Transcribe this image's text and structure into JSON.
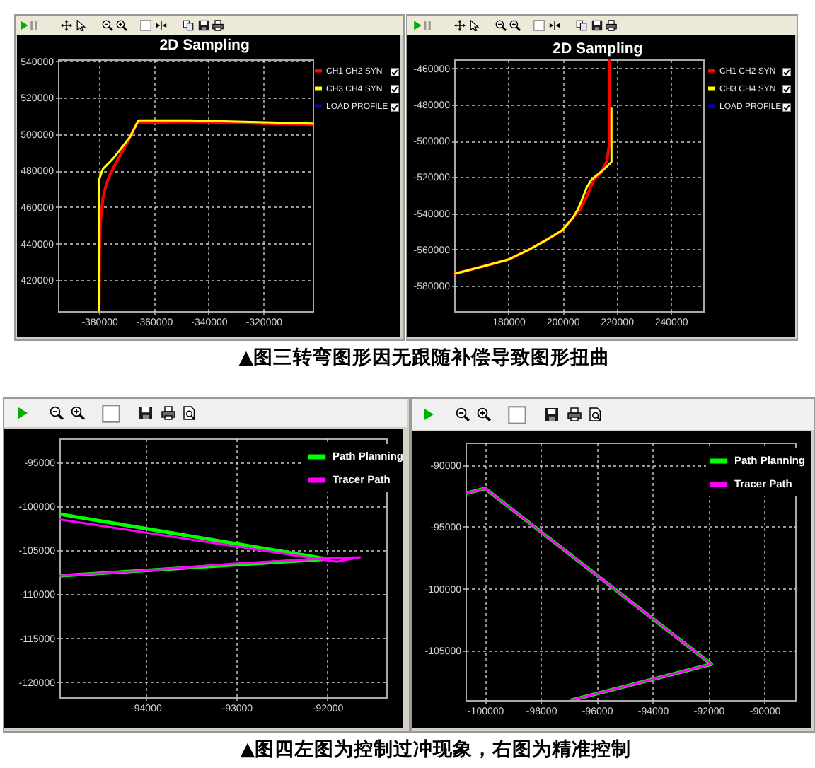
{
  "chart_data": [
    {
      "type": "line",
      "title": "2D Sampling",
      "xlim": [
        -395000,
        -302000
      ],
      "xticks": [
        -380000,
        -360000,
        -340000,
        -320000
      ],
      "ylim": [
        403000,
        541000
      ],
      "yticks": [
        420000,
        440000,
        460000,
        480000,
        500000,
        520000,
        540000
      ],
      "grid": true,
      "legend": "top right",
      "series": [
        {
          "name": "CH1 CH2 SYN",
          "color": "#ff0000",
          "x": [
            -380000,
            -379800,
            -379500,
            -378600,
            -377400,
            -376000,
            -373900,
            -370000,
            -366100,
            -347100,
            -302000
          ],
          "values": [
            403000,
            438800,
            451800,
            464800,
            472600,
            477700,
            484200,
            494600,
            506300,
            506800,
            505200
          ]
        },
        {
          "name": "CH3 CH4 SYN",
          "color": "#ffff00",
          "x": [
            -380000,
            -380000,
            -378600,
            -374800,
            -368700,
            -365600,
            -347100,
            -302000
          ],
          "values": [
            403000,
            475200,
            480900,
            486800,
            498500,
            507600,
            507600,
            505800
          ]
        },
        {
          "name": "LOAD PROFILE",
          "color": "#0000cc"
        }
      ],
      "annotations": [
        "▲图三转弯图形因无跟随补偿导致图形扭曲"
      ]
    },
    {
      "type": "line",
      "title": "2D Sampling",
      "xlim": [
        160000,
        252000
      ],
      "xticks": [
        180000,
        200000,
        220000,
        240000
      ],
      "ylim": [
        -594000,
        -455000
      ],
      "yticks": [
        -580000,
        -560000,
        -540000,
        -520000,
        -500000,
        -480000,
        -460000
      ],
      "grid": true,
      "legend": "top right",
      "series": [
        {
          "name": "CH1 CH2 SYN",
          "color": "#ff0000",
          "x": [
            160300,
            169900,
            180000,
            187300,
            194300,
            200000,
            203800,
            206400,
            208700,
            210300,
            211700,
            214300,
            216500,
            217400,
            217400
          ],
          "values": [
            -573300,
            -569600,
            -565500,
            -560300,
            -554500,
            -549300,
            -542500,
            -538100,
            -531600,
            -525900,
            -521200,
            -517300,
            -510800,
            -500400,
            -455000
          ]
        },
        {
          "name": "CH3 CH4 SYN",
          "color": "#ffff00",
          "x": [
            160300,
            169900,
            180000,
            187300,
            194300,
            200000,
            203800,
            205600,
            207300,
            208900,
            210800,
            215100,
            218100,
            218100
          ],
          "values": [
            -573300,
            -569600,
            -565500,
            -560300,
            -554500,
            -549300,
            -542500,
            -538100,
            -532100,
            -525900,
            -521200,
            -516000,
            -511600,
            -482100
          ]
        },
        {
          "name": "LOAD PROFILE",
          "color": "#0000cc"
        }
      ]
    },
    {
      "type": "line",
      "xlim": [
        -94950,
        -91350
      ],
      "xticks": [
        -94000,
        -93000,
        -92000
      ],
      "ylim": [
        -121700,
        -92300
      ],
      "yticks": [
        -120000,
        -115000,
        -110000,
        -105000,
        -100000,
        -95000
      ],
      "grid": true,
      "legend": "top right",
      "series": [
        {
          "name": "Path Planning",
          "color": "#00ff00",
          "x": [
            -94950,
            -92000,
            -94950
          ],
          "values": [
            -100900,
            -106000,
            -107900
          ]
        },
        {
          "name": "Tracer Path",
          "color": "#ff00ff",
          "x": [
            -94950,
            -92030,
            -91900,
            -91640,
            -91970,
            -93000,
            -94000,
            -94950
          ],
          "values": [
            -101500,
            -106100,
            -106300,
            -105800,
            -105900,
            -106500,
            -107300,
            -107900
          ]
        }
      ],
      "annotations": [
        "▲图四左图为控制过冲现象，右图为精准控制"
      ]
    },
    {
      "type": "line",
      "xlim": [
        -100700,
        -88900
      ],
      "xticks": [
        -100000,
        -98000,
        -96000,
        -94000,
        -92000,
        -90000
      ],
      "ylim": [
        -109000,
        -88200
      ],
      "yticks": [
        -105000,
        -100000,
        -95000,
        -90000
      ],
      "grid": true,
      "legend": "top right",
      "series": [
        {
          "name": "Path Planning",
          "color": "#00ff00",
          "x": [
            -100700,
            -100000,
            -91900,
            -96900
          ],
          "values": [
            -92300,
            -91900,
            -106100,
            -109000
          ]
        },
        {
          "name": "Tracer Path",
          "color": "#ff00ff",
          "x": [
            -100700,
            -100000,
            -91900,
            -96900
          ],
          "values": [
            -92300,
            -91900,
            -106100,
            -109000
          ]
        }
      ]
    }
  ]
}
